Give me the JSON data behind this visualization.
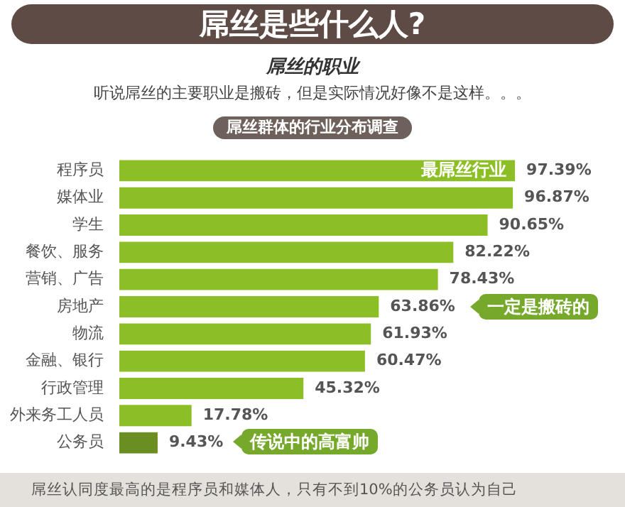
{
  "chart_data": {
    "type": "bar",
    "orientation": "horizontal",
    "title": "屌丝是些什么人?",
    "subtitle": "屌丝的职业",
    "categories": [
      "程序员",
      "媒体业",
      "学生",
      "餐饮、服务",
      "营销、广告",
      "房地产",
      "物流",
      "金融、银行",
      "行政管理",
      "外来务工人员",
      "公务员"
    ],
    "values": [
      97.39,
      96.87,
      90.65,
      82.22,
      78.43,
      63.86,
      61.93,
      60.47,
      45.32,
      17.78,
      9.43
    ],
    "colors": [
      "#8cbf26",
      "#8cbf26",
      "#8cbf26",
      "#8cbf26",
      "#8cbf26",
      "#8cbf26",
      "#8cbf26",
      "#8cbf26",
      "#8cbf26",
      "#8cbf26",
      "#6b8e23"
    ],
    "value_labels": [
      "97.39%",
      "96.87%",
      "90.65%",
      "82.22%",
      "78.43%",
      "63.86%",
      "61.93%",
      "60.47%",
      "45.32%",
      "17.78%",
      "9.43%"
    ],
    "tick_labels": "y",
    "legend": false,
    "annotations": [
      "听说屌丝的主要职业是搬砖，但是实际情况好像不是这样。。。",
      "屌丝群体的行业分布调查",
      {
        "text": "最屌丝行业",
        "x": 97.39,
        "y": "程序员"
      },
      "一定是搬砖的",
      "传说中的高富帅",
      "屌丝认同度最高的是程序员和媒体人，只有不到10%的公务员认为自己"
    ]
  }
}
